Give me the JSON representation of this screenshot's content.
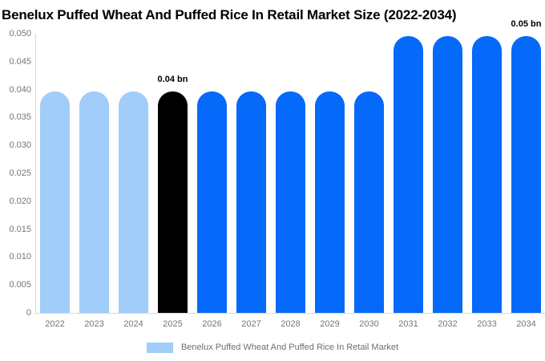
{
  "title": "Benelux Puffed Wheat And Puffed Rice In Retail Market Size (2022-2034)",
  "legend": {
    "label": "Benelux Puffed Wheat And Puffed Rice In Retail Market",
    "swatch_color": "#a0cdfa"
  },
  "colors": {
    "historical_bar": "#a0cdfa",
    "base_year_bar": "#000000",
    "forecast_bar": "#0569fa",
    "axis_line": "#d9d9d9",
    "tick_text": "#757575",
    "data_label_text": "#000000",
    "title_text": "#000000",
    "background": "#ffffff"
  },
  "chart_data": {
    "type": "bar",
    "title": "Benelux Puffed Wheat And Puffed Rice In Retail Market Size (2022-2034)",
    "xlabel": "",
    "ylabel": "",
    "unit": "bn",
    "categories": [
      "2022",
      "2023",
      "2024",
      "2025",
      "2026",
      "2027",
      "2028",
      "2029",
      "2030",
      "2031",
      "2032",
      "2033",
      "2034"
    ],
    "values": [
      0.0397,
      0.0397,
      0.0397,
      0.0397,
      0.0397,
      0.0397,
      0.0397,
      0.0397,
      0.0397,
      0.0496,
      0.0496,
      0.0496,
      0.0496
    ],
    "bar_color_roles": [
      "historical",
      "historical",
      "historical",
      "base_year",
      "forecast",
      "forecast",
      "forecast",
      "forecast",
      "forecast",
      "forecast",
      "forecast",
      "forecast",
      "forecast"
    ],
    "ylim": [
      0,
      0.05
    ],
    "yticks": [
      "0.050",
      "0.045",
      "0.040",
      "0.035",
      "0.030",
      "0.025",
      "0.020",
      "0.015",
      "0.010",
      "0.005",
      "0"
    ],
    "grid": "off",
    "legend_position": "bottom",
    "data_labels": [
      {
        "category": "2025",
        "text": "0.04 bn"
      },
      {
        "category": "2034",
        "text": "0.05 bn"
      }
    ]
  }
}
